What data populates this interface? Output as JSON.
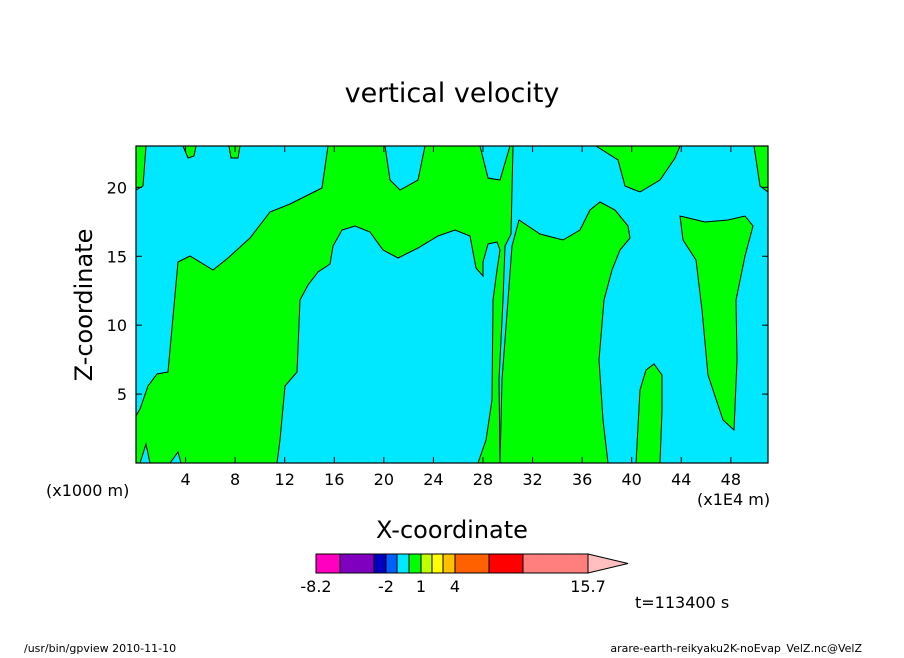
{
  "chart_data": {
    "type": "heatmap",
    "title": "vertical velocity",
    "xlabel": "X-coordinate",
    "ylabel": "Z-coordinate",
    "x_scale_note": "(x1E4 m)",
    "y_scale_note": "(x1000 m)",
    "xlim": [
      0,
      51
    ],
    "ylim": [
      0,
      23
    ],
    "x_ticks": [
      4,
      8,
      12,
      16,
      20,
      24,
      28,
      32,
      36,
      40,
      44,
      48
    ],
    "y_ticks": [
      5,
      10,
      15,
      20
    ],
    "colors": {
      "background_level": "#00e8ff",
      "positive_level": "#00ff00"
    },
    "colorbar": {
      "colors": [
        "#ff00c0",
        "#8000c0",
        "#0000c0",
        "#0060ff",
        "#00e8ff",
        "#00ff00",
        "#c0ff00",
        "#ffff00",
        "#ffc000",
        "#ff6000",
        "#ff0000",
        "#ff7f7f",
        "#ffbfbf"
      ],
      "labels": [
        "-8.2",
        "-2",
        "1",
        "4",
        "15.7"
      ]
    },
    "time_label": "t=113400 s"
  },
  "footer": {
    "left": "/usr/bin/gpview  2010-11-10",
    "right": "arare-earth-reikyaku2K-noEvap_VelZ.nc@VelZ"
  }
}
